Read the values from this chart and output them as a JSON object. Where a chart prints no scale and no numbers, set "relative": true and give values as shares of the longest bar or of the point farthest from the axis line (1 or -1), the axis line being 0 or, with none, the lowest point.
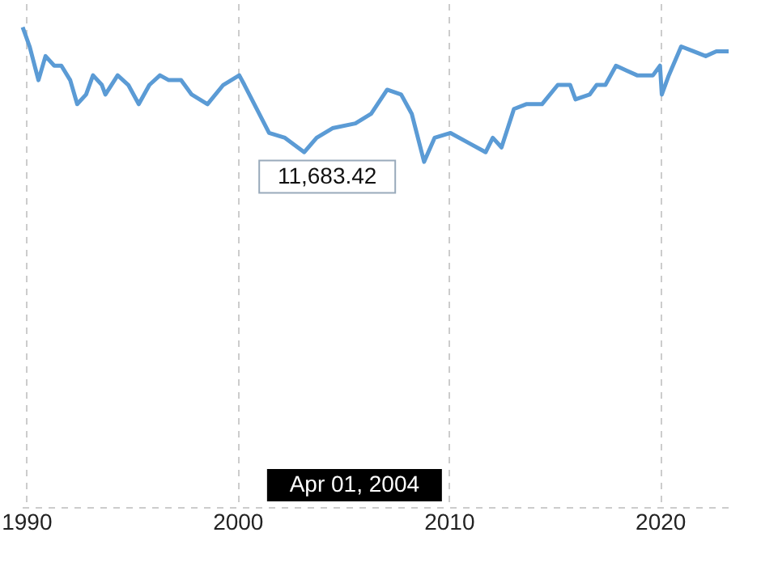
{
  "chart_data": {
    "type": "line",
    "relative": true,
    "x": [
      "1989-11",
      "1990-03",
      "1990-08",
      "1990-12",
      "1991-05",
      "1991-09",
      "1992-02",
      "1992-06",
      "1992-11",
      "1993-03",
      "1993-08",
      "1993-10",
      "1994-05",
      "1994-11",
      "1995-05",
      "1995-11",
      "1996-05",
      "1996-10",
      "1997-05",
      "1997-11",
      "1998-08",
      "1999-05",
      "2000-02",
      "2000-05",
      "2001-07",
      "2002-04",
      "2003-03",
      "2003-10",
      "2004-07",
      "2005-08",
      "2006-05",
      "2007-02",
      "2007-10",
      "2008-04",
      "2008-11",
      "2009-05",
      "2010-02",
      "2010-12",
      "2011-10",
      "2012-02",
      "2012-07",
      "2013-02",
      "2013-09",
      "2014-06",
      "2015-03",
      "2015-10",
      "2016-01",
      "2016-09",
      "2017-01",
      "2017-06",
      "2017-12",
      "2018-06",
      "2018-12",
      "2019-09",
      "2020-01",
      "2020-02",
      "2020-06",
      "2021-01",
      "2021-08",
      "2022-03",
      "2022-09",
      "2023-04"
    ],
    "series": [
      {
        "color": "#5b9bd5",
        "values": [
          1,
          0.96,
          0.89,
          0.94,
          0.92,
          0.92,
          0.89,
          0.84,
          0.86,
          0.9,
          0.88,
          0.86,
          0.9,
          0.88,
          0.84,
          0.88,
          0.9,
          0.89,
          0.89,
          0.86,
          0.84,
          0.88,
          0.9,
          0.88,
          0.78,
          0.77,
          0.74,
          0.77,
          0.79,
          0.8,
          0.82,
          0.87,
          0.86,
          0.82,
          0.72,
          0.77,
          0.78,
          0.76,
          0.74,
          0.77,
          0.75,
          0.83,
          0.84,
          0.84,
          0.88,
          0.88,
          0.85,
          0.86,
          0.88,
          0.88,
          0.92,
          0.91,
          0.9,
          0.9,
          0.92,
          0.86,
          0.9,
          0.96,
          0.95,
          0.94,
          0.95,
          0.95
        ]
      }
    ],
    "xlim": [
      "1989-11",
      "2023-04"
    ],
    "xticks": [
      "1990",
      "2000",
      "2010",
      "2020"
    ],
    "grid": "x",
    "marker": "none",
    "line_style": "solid",
    "annotations": [
      {
        "text": "11,683.42",
        "x": "2004-04-01",
        "y": 0.79
      },
      "Apr 01, 2004"
    ]
  }
}
